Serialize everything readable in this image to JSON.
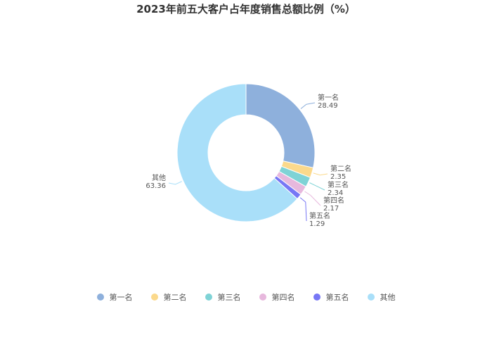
{
  "chart_data": {
    "type": "pie",
    "donut": true,
    "title": "2023年前五大客户占年度销售总额比例（%）",
    "legend_position": "bottom",
    "slices": [
      {
        "name": "第一名",
        "value": 28.49,
        "label": "28.49",
        "color": "#8eb0dc"
      },
      {
        "name": "第二名",
        "value": 2.35,
        "label": "2.35",
        "color": "#fbd98c"
      },
      {
        "name": "第三名",
        "value": 2.34,
        "label": "2.34",
        "color": "#7fd3d6"
      },
      {
        "name": "第四名",
        "value": 2.17,
        "label": "2.17",
        "color": "#e7b8dd"
      },
      {
        "name": "第五名",
        "value": 1.29,
        "label": "1.29",
        "color": "#7777f5"
      },
      {
        "name": "其他",
        "value": 63.36,
        "label": "63.36",
        "color": "#a9dff9"
      }
    ]
  }
}
